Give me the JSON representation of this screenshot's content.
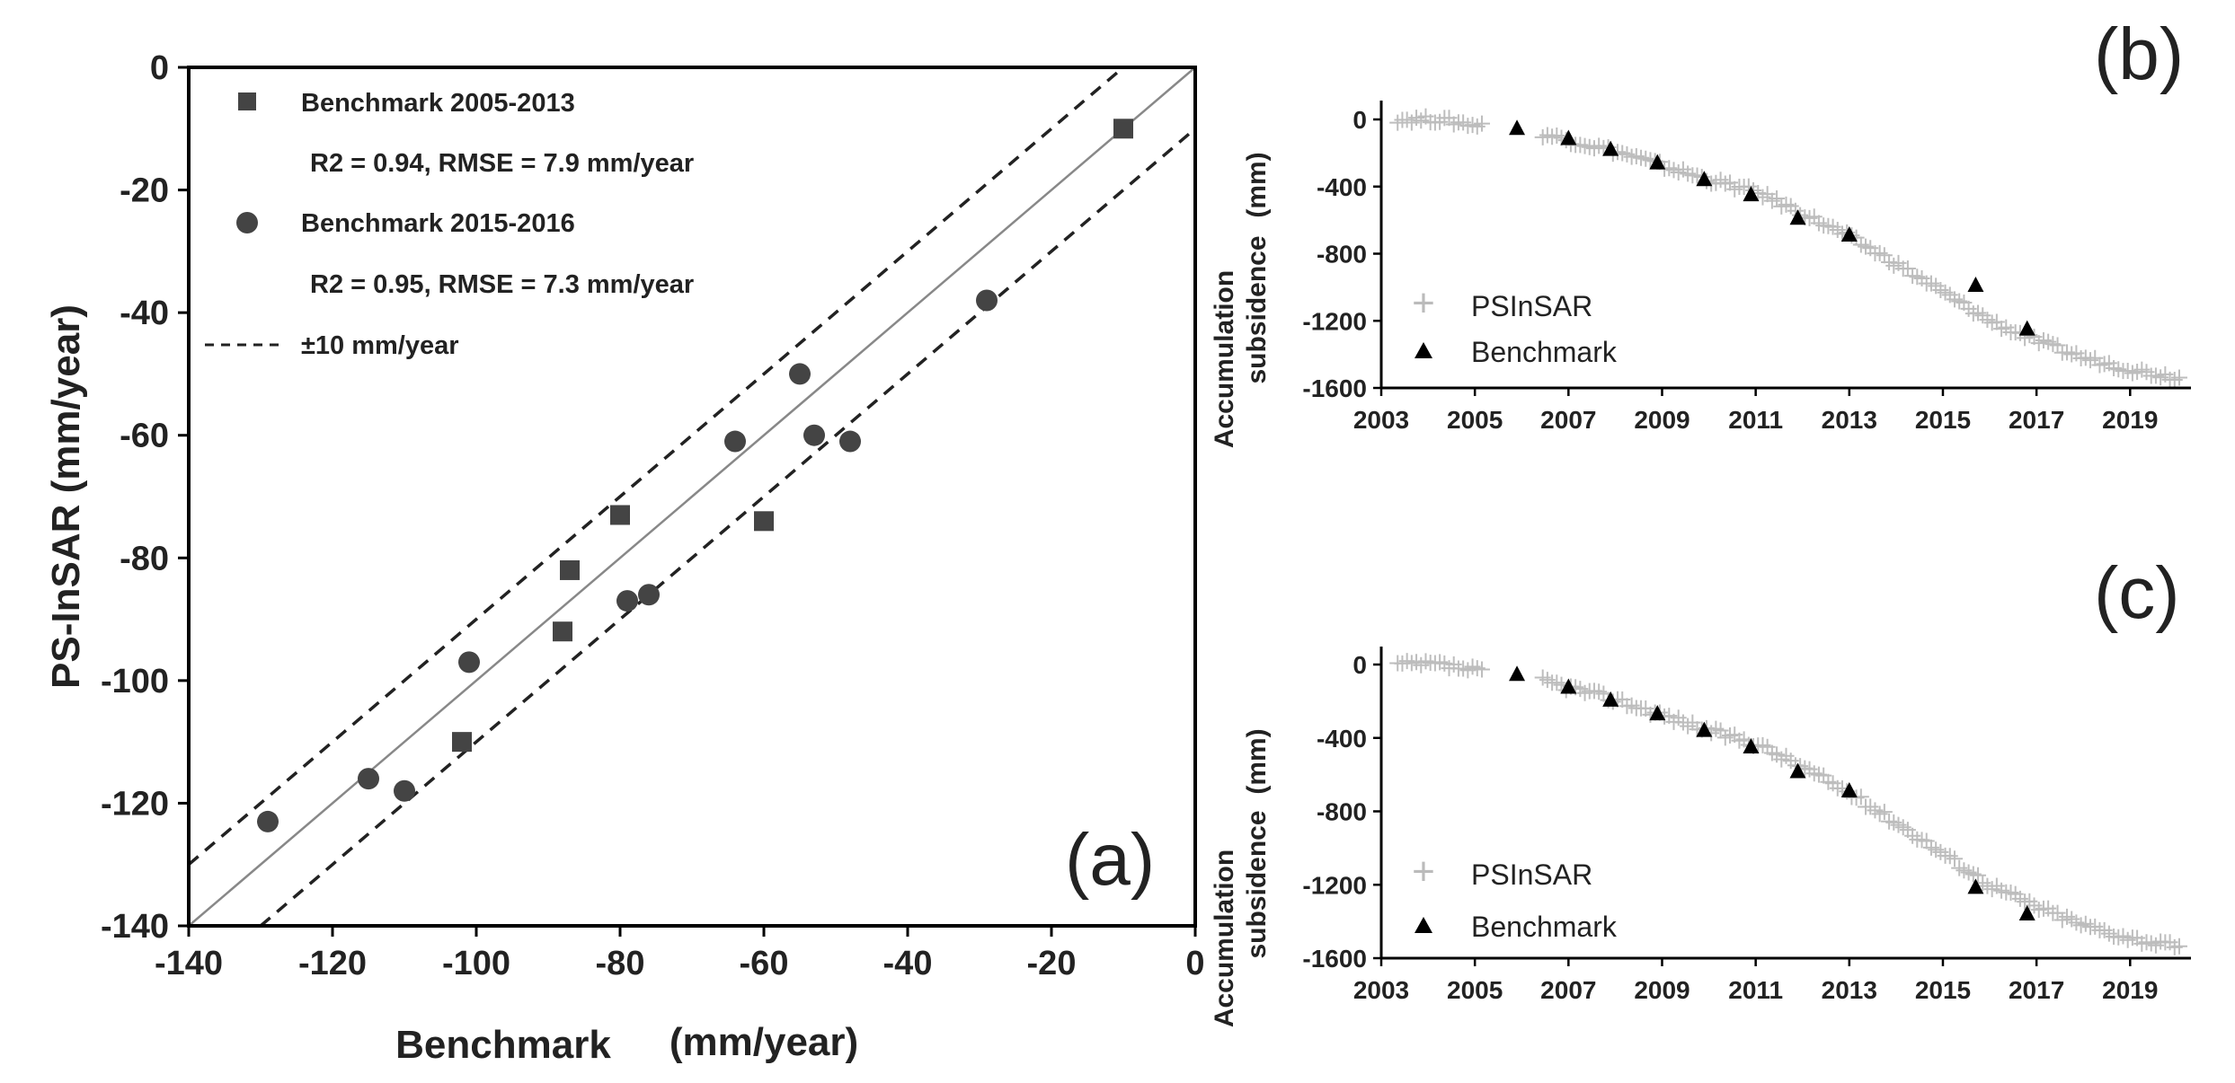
{
  "chart_data": [
    {
      "panel_label": "(a)",
      "type": "scatter",
      "xlabel_main": "Benchmark",
      "xlabel_unit": "(mm/year)",
      "ylabel": "PS-InSAR (mm/year)",
      "xlim": [
        -140,
        0
      ],
      "ylim": [
        -140,
        0
      ],
      "xticks": [
        -140,
        -120,
        -100,
        -80,
        -60,
        -40,
        -20,
        0
      ],
      "yticks": [
        -140,
        -120,
        -100,
        -80,
        -60,
        -40,
        -20,
        0
      ],
      "series": [
        {
          "name": "Benchmark 2005-2013",
          "stats": "R2 = 0.94, RMSE = 7.9 mm/year",
          "marker": "square",
          "points": [
            [
              -10,
              -10
            ],
            [
              -80,
              -73
            ],
            [
              -87,
              -82
            ],
            [
              -88,
              -92
            ],
            [
              -60,
              -74
            ],
            [
              -102,
              -110
            ]
          ]
        },
        {
          "name": "Benchmark 2015-2016",
          "stats": "R2 = 0.95, RMSE = 7.3 mm/year",
          "marker": "circle",
          "points": [
            [
              -29,
              -38
            ],
            [
              -55,
              -50
            ],
            [
              -53,
              -60
            ],
            [
              -48,
              -61
            ],
            [
              -64,
              -61
            ],
            [
              -79,
              -87
            ],
            [
              -76,
              -86
            ],
            [
              -101,
              -97
            ],
            [
              -115,
              -116
            ],
            [
              -110,
              -118
            ],
            [
              -129,
              -123
            ]
          ]
        }
      ],
      "reference_lines": {
        "one_to_one": true,
        "offset": 10,
        "offset_label": "±10 mm/year"
      }
    },
    {
      "panel_label": "(b)",
      "type": "scatter",
      "ylabel_line1": "Accumulation",
      "ylabel_line2": "subsidence",
      "ylabel_unit": "(mm)",
      "xlim": [
        2003,
        2020.3
      ],
      "ylim": [
        -1600,
        100
      ],
      "xticks": [
        2003,
        2005,
        2007,
        2009,
        2011,
        2013,
        2015,
        2017,
        2019
      ],
      "yticks": [
        0,
        -400,
        -800,
        -1200,
        -1600
      ],
      "legend": [
        "PSInSAR",
        "Benchmark"
      ],
      "benchmark": [
        [
          2005.9,
          -55
        ],
        [
          2007.0,
          -115
        ],
        [
          2007.9,
          -180
        ],
        [
          2008.9,
          -260
        ],
        [
          2009.9,
          -360
        ],
        [
          2010.9,
          -450
        ],
        [
          2011.9,
          -590
        ],
        [
          2013.0,
          -690
        ],
        [
          2015.7,
          -990
        ],
        [
          2016.8,
          -1250
        ]
      ]
    },
    {
      "panel_label": "(c)",
      "type": "scatter",
      "ylabel_line1": "Accumulation",
      "ylabel_line2": "subsidence",
      "ylabel_unit": "(mm)",
      "xlim": [
        2003,
        2020.3
      ],
      "ylim": [
        -1600,
        100
      ],
      "xticks": [
        2003,
        2005,
        2007,
        2009,
        2011,
        2013,
        2015,
        2017,
        2019
      ],
      "yticks": [
        0,
        -400,
        -800,
        -1200,
        -1600
      ],
      "legend": [
        "PSInSAR",
        "Benchmark"
      ],
      "benchmark": [
        [
          2005.9,
          -55
        ],
        [
          2007.0,
          -125
        ],
        [
          2007.9,
          -195
        ],
        [
          2008.9,
          -270
        ],
        [
          2009.9,
          -360
        ],
        [
          2010.9,
          -450
        ],
        [
          2011.9,
          -585
        ],
        [
          2013.0,
          -690
        ],
        [
          2015.7,
          -1215
        ],
        [
          2016.8,
          -1360
        ]
      ]
    }
  ]
}
